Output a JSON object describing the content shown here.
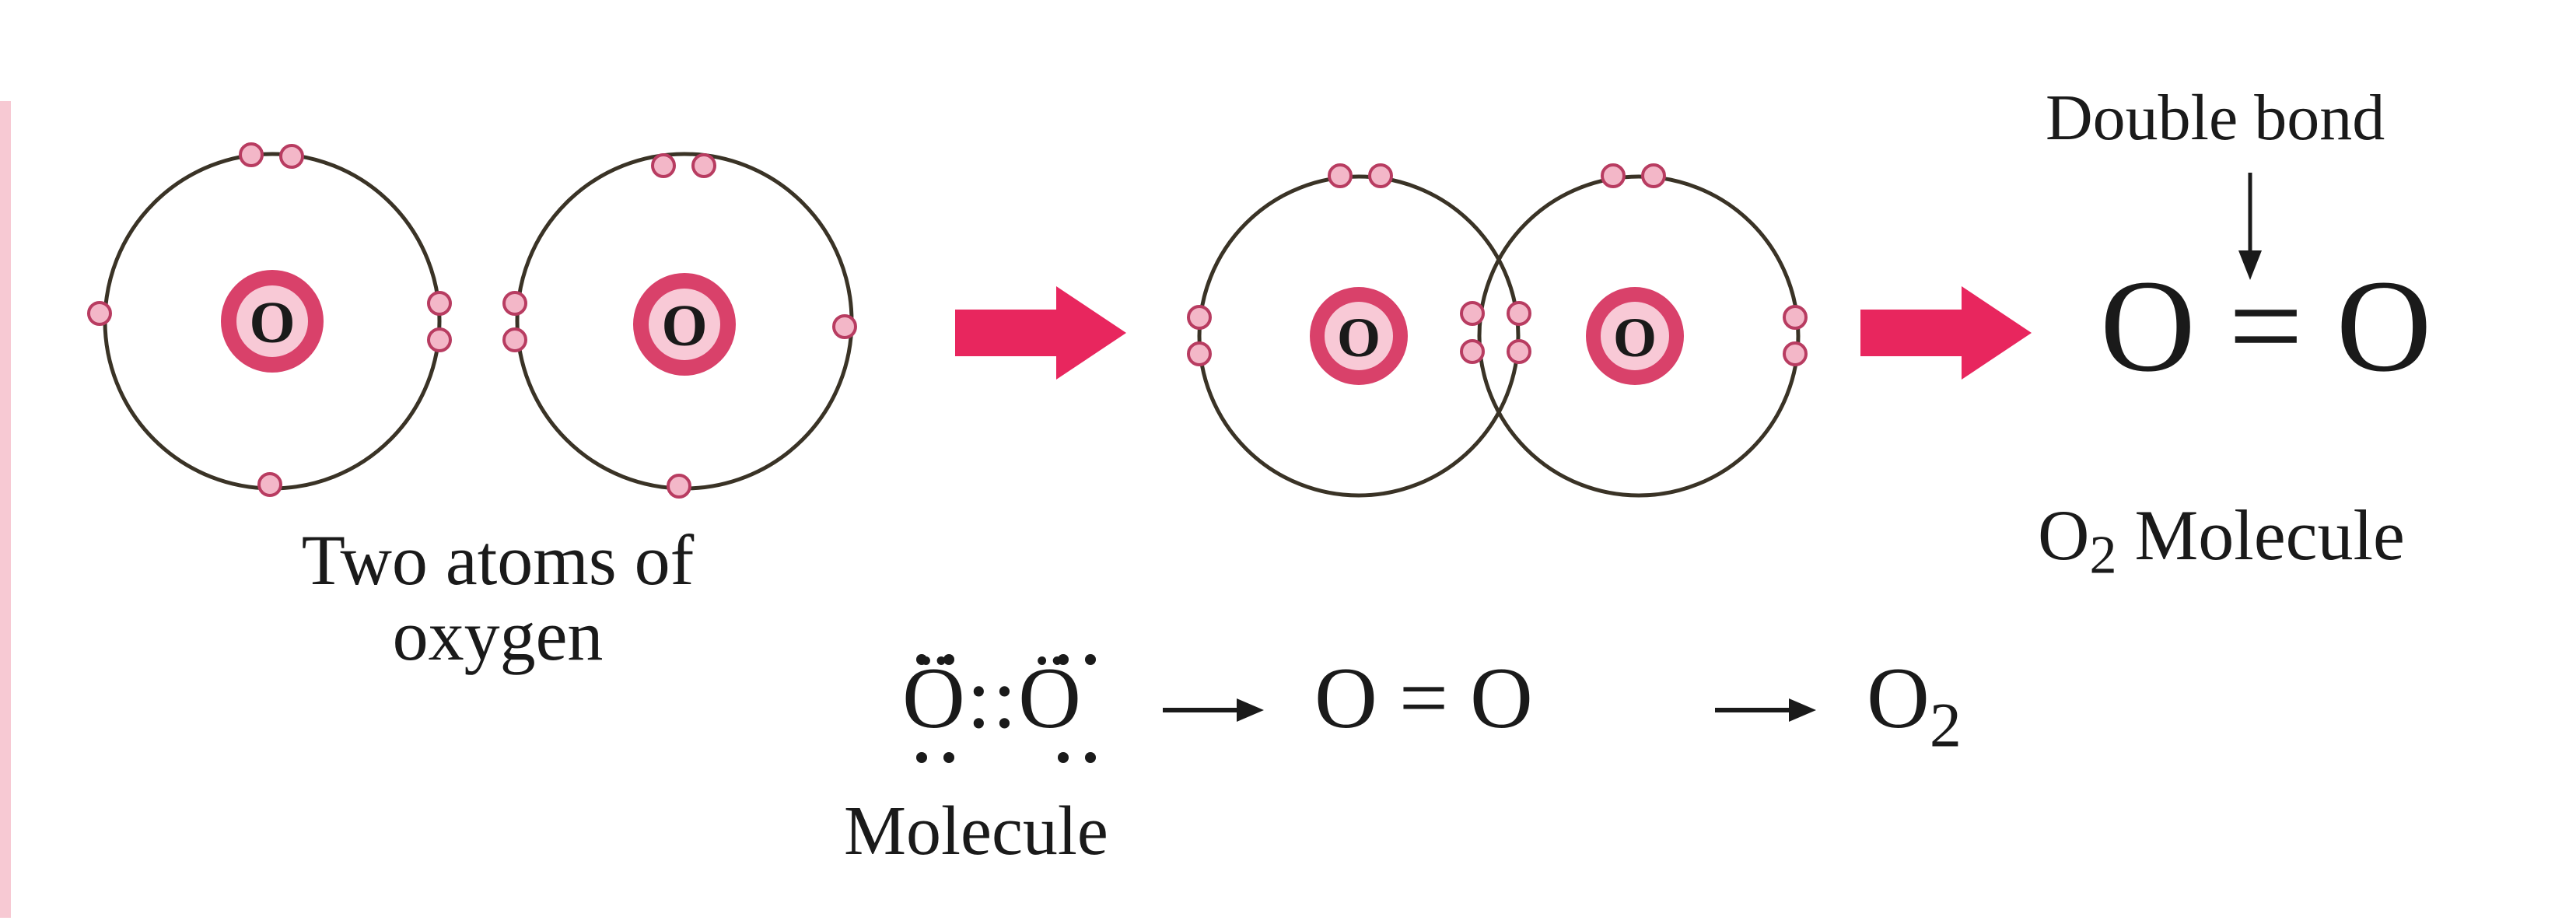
{
  "labels": {
    "nucleus_symbol": "O",
    "two_atoms_line1": "Two atoms of",
    "two_atoms_line2": "oxygen",
    "double_bond": "Double bond",
    "structural_formula": "O = O",
    "o2_molecule_symbol": "O",
    "o2_molecule_subscript": "2",
    "o2_molecule_word": "Molecule",
    "lewis_formula": "Ö::Ö",
    "formula_eq": "O = O",
    "o2_symbol": "O",
    "o2_subscript": "2",
    "molecule_caption": "Molecule"
  },
  "colors": {
    "arrow": "#e8265e",
    "electron_fill": "#f3b7c8",
    "electron_stroke": "#b83c61",
    "nucleus_outer": "#d9416a",
    "nucleus_inner": "#f8c9d6",
    "shell": "#3a3326",
    "left_edge": "#f7c9d3"
  }
}
